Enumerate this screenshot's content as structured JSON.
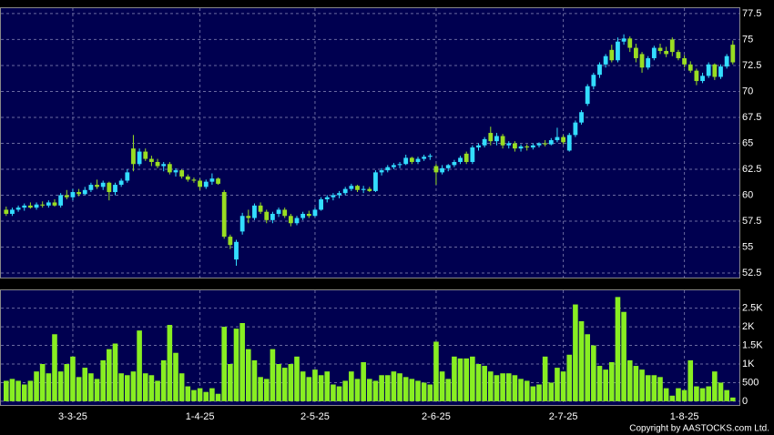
{
  "chart_data": [
    {
      "type": "candlestick",
      "open": [
        58.6,
        58.2,
        58.6,
        58.8,
        59.0,
        58.8,
        59.1,
        59.0,
        59.3,
        59.0,
        60.0,
        59.8,
        60.3,
        60.1,
        60.5,
        61.0,
        60.8,
        61.2,
        60.3,
        61.0,
        61.4,
        64.5,
        63.0,
        64.2,
        63.5,
        63.2,
        62.8,
        63.0,
        62.2,
        62.4,
        61.8,
        61.5,
        61.4,
        60.8,
        61.3,
        61.6,
        60.3,
        56.0,
        53.8,
        56.5,
        58.0,
        57.8,
        59.0,
        58.4,
        57.6,
        58.2,
        58.6,
        58.0,
        57.3,
        57.8,
        58.2,
        58.0,
        58.6,
        59.6,
        59.8,
        60.0,
        60.2,
        60.6,
        60.9,
        60.5,
        60.6,
        60.4,
        62.2,
        62.4,
        62.7,
        62.9,
        63.0,
        63.6,
        63.2,
        63.5,
        63.7,
        62.8,
        62.2,
        62.6,
        62.9,
        63.2,
        64.0,
        63.2,
        64.6,
        64.8,
        66.0,
        65.2,
        65.7,
        64.8,
        65.0,
        64.5,
        64.7,
        64.6,
        64.8,
        65.0,
        64.9,
        65.3,
        65.6,
        64.3,
        65.8,
        67.0,
        68.8,
        70.5,
        71.6,
        72.6,
        74.0,
        73.0,
        74.8,
        75.1,
        74.2,
        73.6,
        72.3,
        73.2,
        74.2,
        73.9,
        75.0,
        73.8,
        73.2,
        72.6,
        72.0,
        71.0,
        71.5,
        72.6,
        71.4,
        72.4,
        74.5
      ],
      "high": [
        58.9,
        58.8,
        59.0,
        59.2,
        59.3,
        59.3,
        59.4,
        59.5,
        59.6,
        60.2,
        60.5,
        60.6,
        60.6,
        60.8,
        61.2,
        61.5,
        61.4,
        61.3,
        61.2,
        61.6,
        62.5,
        65.8,
        64.5,
        64.5,
        63.8,
        63.5,
        63.2,
        63.2,
        62.6,
        62.5,
        62.0,
        61.7,
        61.6,
        61.5,
        62.1,
        61.7,
        60.5,
        56.2,
        55.7,
        58.3,
        58.6,
        59.2,
        59.3,
        58.6,
        58.4,
        58.8,
        58.8,
        58.2,
        58.0,
        58.4,
        58.5,
        58.8,
        59.8,
        60.0,
        60.2,
        60.4,
        60.8,
        61.1,
        61.0,
        60.9,
        60.8,
        62.4,
        62.6,
        62.9,
        63.1,
        63.2,
        63.9,
        63.7,
        63.7,
        63.9,
        64.0,
        63.0,
        62.9,
        63.0,
        63.4,
        63.8,
        64.2,
        64.8,
        65.0,
        65.6,
        66.6,
        66.0,
        65.9,
        65.2,
        65.2,
        64.9,
        64.9,
        65.0,
        65.1,
        65.3,
        65.5,
        66.5,
        65.8,
        66.0,
        67.2,
        68.2,
        70.7,
        71.8,
        72.8,
        73.6,
        74.5,
        75.2,
        75.5,
        75.3,
        74.6,
        73.8,
        73.4,
        74.4,
        74.6,
        74.3,
        75.2,
        74.0,
        73.5,
        72.9,
        72.2,
        71.8,
        72.8,
        72.7,
        72.6,
        73.6,
        74.9
      ],
      "low": [
        58.0,
        58.0,
        58.4,
        58.5,
        58.7,
        58.6,
        58.8,
        58.8,
        58.9,
        58.8,
        59.6,
        59.5,
        59.9,
        60.0,
        60.3,
        60.6,
        60.5,
        59.5,
        60.0,
        60.8,
        61.2,
        62.3,
        62.8,
        63.3,
        62.8,
        62.6,
        62.3,
        62.0,
        61.8,
        61.6,
        61.3,
        61.2,
        60.5,
        60.6,
        61.0,
        61.0,
        55.8,
        54.8,
        53.2,
        56.2,
        57.3,
        57.6,
        58.2,
        57.3,
        57.3,
        57.9,
        57.8,
        57.0,
        57.1,
        57.6,
        57.8,
        57.9,
        58.5,
        59.3,
        59.5,
        59.7,
        60.0,
        60.4,
        60.3,
        60.2,
        60.3,
        60.3,
        61.9,
        62.2,
        62.5,
        62.6,
        62.9,
        63.0,
        63.0,
        63.3,
        63.4,
        61.0,
        62.0,
        62.3,
        62.7,
        63.0,
        63.0,
        63.0,
        64.3,
        64.6,
        64.8,
        64.8,
        64.5,
        64.5,
        64.2,
        64.2,
        64.3,
        64.4,
        64.6,
        64.7,
        64.8,
        65.1,
        64.9,
        64.2,
        65.6,
        66.8,
        68.6,
        70.2,
        71.3,
        72.3,
        72.8,
        72.8,
        74.5,
        73.8,
        72.8,
        71.8,
        72.1,
        73.0,
        73.6,
        73.3,
        73.4,
        73.0,
        72.3,
        71.8,
        70.6,
        70.8,
        71.3,
        71.1,
        71.2,
        72.2,
        72.6
      ],
      "close": [
        58.2,
        58.6,
        58.8,
        59.0,
        58.8,
        59.1,
        59.0,
        59.3,
        59.0,
        60.0,
        59.8,
        60.3,
        60.1,
        60.5,
        61.0,
        60.8,
        61.2,
        60.3,
        61.0,
        61.4,
        62.2,
        63.0,
        64.2,
        63.5,
        63.2,
        62.8,
        63.0,
        62.2,
        62.4,
        61.8,
        61.5,
        61.4,
        60.8,
        61.3,
        61.6,
        61.1,
        56.0,
        55.2,
        55.5,
        58.0,
        57.8,
        59.0,
        58.4,
        57.6,
        58.2,
        58.6,
        58.0,
        57.3,
        57.8,
        58.2,
        58.0,
        58.6,
        59.6,
        59.8,
        60.0,
        60.2,
        60.6,
        60.9,
        60.5,
        60.6,
        60.4,
        62.2,
        62.4,
        62.7,
        62.9,
        63.0,
        63.6,
        63.2,
        63.5,
        63.7,
        63.8,
        62.2,
        62.6,
        62.9,
        63.2,
        63.6,
        63.2,
        64.6,
        64.8,
        65.4,
        65.2,
        65.7,
        64.8,
        65.0,
        64.5,
        64.7,
        64.6,
        64.8,
        65.0,
        64.9,
        65.3,
        65.6,
        65.1,
        65.8,
        67.0,
        68.0,
        70.5,
        71.6,
        72.6,
        73.4,
        73.0,
        74.8,
        75.1,
        74.2,
        73.2,
        72.3,
        73.2,
        74.2,
        73.9,
        73.6,
        73.8,
        73.2,
        72.6,
        72.0,
        71.0,
        71.5,
        72.6,
        71.4,
        72.4,
        73.4,
        72.8
      ],
      "up_color": "#33ddff",
      "down_color": "#99dd22",
      "ylim": [
        52.06,
        78.02
      ],
      "yticks": [
        77.5,
        75,
        72.5,
        70,
        67.5,
        65,
        62.5,
        60,
        57.5,
        55,
        52.5
      ],
      "grid": true
    },
    {
      "type": "bar",
      "categories": [
        null,
        null,
        null,
        null,
        null,
        null,
        null,
        null,
        null,
        null,
        null,
        "3-3-25",
        null,
        null,
        null,
        null,
        null,
        null,
        null,
        null,
        null,
        null,
        null,
        null,
        null,
        null,
        null,
        null,
        null,
        null,
        null,
        null,
        "1-4-25",
        null,
        null,
        null,
        null,
        null,
        null,
        null,
        null,
        null,
        null,
        null,
        null,
        null,
        null,
        null,
        null,
        null,
        null,
        "2-5-25",
        null,
        null,
        null,
        null,
        null,
        null,
        null,
        null,
        null,
        null,
        null,
        null,
        null,
        null,
        null,
        null,
        null,
        null,
        null,
        "2-6-25",
        null,
        null,
        null,
        null,
        null,
        null,
        null,
        null,
        null,
        null,
        null,
        null,
        null,
        null,
        null,
        null,
        null,
        null,
        null,
        null,
        "2-7-25",
        null,
        null,
        null,
        null,
        null,
        null,
        null,
        null,
        null,
        null,
        null,
        null,
        null,
        null,
        null,
        null,
        null,
        null,
        null,
        "1-8-25",
        null,
        null,
        null,
        null,
        null,
        null,
        null,
        null
      ],
      "values": [
        550,
        600,
        550,
        450,
        550,
        800,
        1000,
        750,
        1800,
        800,
        1000,
        1200,
        650,
        900,
        750,
        600,
        1100,
        1400,
        1550,
        750,
        700,
        800,
        1900,
        750,
        700,
        550,
        1100,
        2050,
        1300,
        750,
        400,
        300,
        350,
        250,
        350,
        200,
        2000,
        1000,
        1950,
        2100,
        1400,
        1100,
        650,
        600,
        1400,
        1000,
        900,
        1000,
        1200,
        800,
        650,
        850,
        700,
        800,
        450,
        400,
        550,
        800,
        600,
        1050,
        600,
        550,
        700,
        700,
        800,
        750,
        650,
        600,
        550,
        500,
        450,
        1600,
        800,
        600,
        1200,
        1150,
        1150,
        1200,
        1000,
        950,
        800,
        700,
        750,
        750,
        700,
        600,
        550,
        400,
        450,
        1200,
        500,
        900,
        800,
        1250,
        2600,
        2150,
        1800,
        1500,
        950,
        850,
        1050,
        2800,
        2400,
        1100,
        950,
        850,
        700,
        700,
        650,
        350,
        150,
        350,
        300,
        1100,
        400,
        350,
        400,
        800,
        500,
        300,
        100
      ],
      "color": "#88ee22",
      "ylim": [
        -100,
        2980
      ],
      "yticks": [
        {
          "value": 2500,
          "label": "2.5K"
        },
        {
          "value": 2000,
          "label": "2K"
        },
        {
          "value": 1500,
          "label": "1.5K"
        },
        {
          "value": 1000,
          "label": "1K"
        },
        500,
        0
      ],
      "grid": true
    }
  ],
  "footer": "Copyright by AASTOCKS.com Ltd."
}
